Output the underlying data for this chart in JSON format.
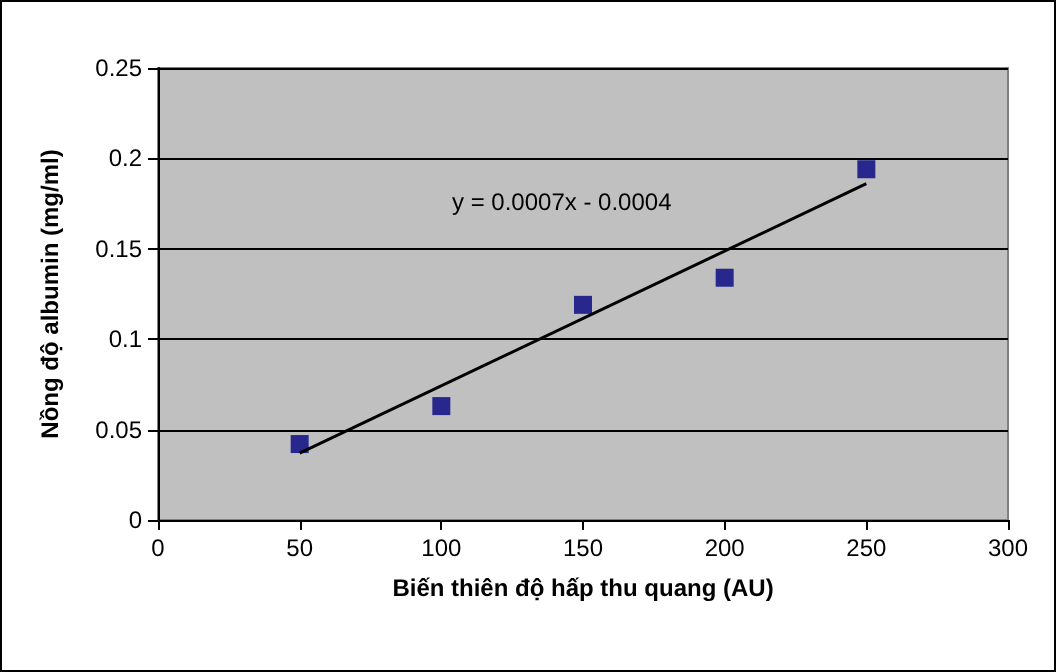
{
  "chart_data": {
    "type": "scatter",
    "xlabel": "Biến thiên độ hấp thu quang (AU)",
    "ylabel": "Nồng độ albumin (mg/ml)",
    "x": [
      50,
      100,
      150,
      200,
      250
    ],
    "series": [
      {
        "color": "#000080",
        "marker": "square",
        "values": [
          0.042,
          0.063,
          0.119,
          0.134,
          0.194
        ]
      },
      {
        "type": "line",
        "color": "#000000",
        "marker": "none",
        "line_style": "solid",
        "x": [
          50,
          250
        ],
        "values": [
          0.037,
          0.186
        ]
      }
    ],
    "xlim": [
      0,
      300
    ],
    "xticks": [
      0,
      50,
      100,
      150,
      200,
      250,
      300
    ],
    "ylim": [
      0,
      0.25
    ],
    "yticks": [
      0,
      0.05,
      0.1,
      0.15,
      0.2,
      0.25
    ],
    "grid": "y",
    "annotations": [
      "y = 0.0007x - 0.0004"
    ]
  }
}
